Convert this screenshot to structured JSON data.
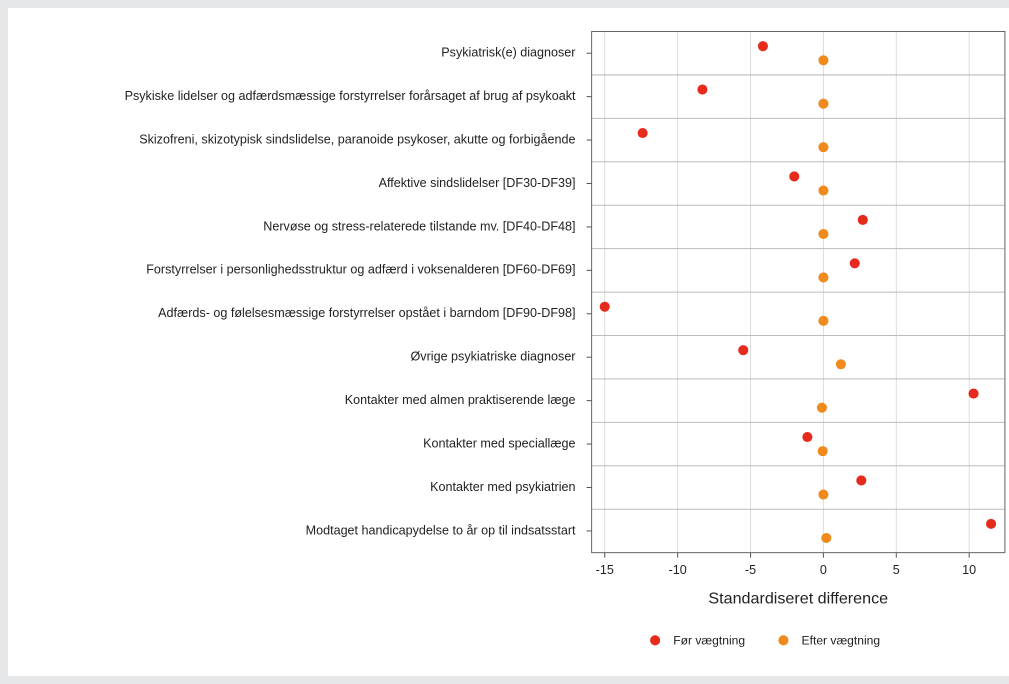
{
  "chart_data": {
    "type": "dot",
    "categories": [
      "Psykiatrisk(e) diagnoser",
      "Psykiske lidelser og adfærdsmæssige forstyrrelser forårsaget af brug af psykoakt",
      "Skizofreni, skizotypisk sindslidelse, paranoide psykoser, akutte og forbigående",
      "Affektive sindslidelser [DF30-DF39]",
      "Nervøse og stress-relaterede tilstande mv. [DF40-DF48]",
      "Forstyrrelser i personlighedsstruktur og adfærd i voksenalderen [DF60-DF69]",
      "Adfærds- og følelsesmæssige forstyrrelser opstået i barndom [DF90-DF98]",
      "Øvrige psykiatriske diagnoser",
      "Kontakter med almen praktiserende læge",
      "Kontakter med speciallæge",
      "Kontakter med psykiatrien",
      "Modtaget handicapydelse to år op til indsatsstart"
    ],
    "series": [
      {
        "name": "Før vægtning",
        "color": "#e62a1c",
        "values": [
          -4.15,
          -8.3,
          -12.4,
          -2.0,
          2.7,
          2.15,
          -15.0,
          -5.5,
          10.3,
          -1.1,
          2.6,
          11.5
        ]
      },
      {
        "name": "Efter vægtning",
        "color": "#f08a1c",
        "values": [
          0,
          0,
          0,
          0,
          0,
          0,
          0,
          1.2,
          -0.1,
          -0.05,
          0,
          0.2
        ]
      }
    ],
    "x_label": "Standardiseret difference",
    "xlim": [
      -15.9,
      12.45
    ],
    "xticks": [
      -15,
      -10,
      -5,
      0,
      5,
      10
    ],
    "grid": true,
    "legend": "bottom"
  }
}
